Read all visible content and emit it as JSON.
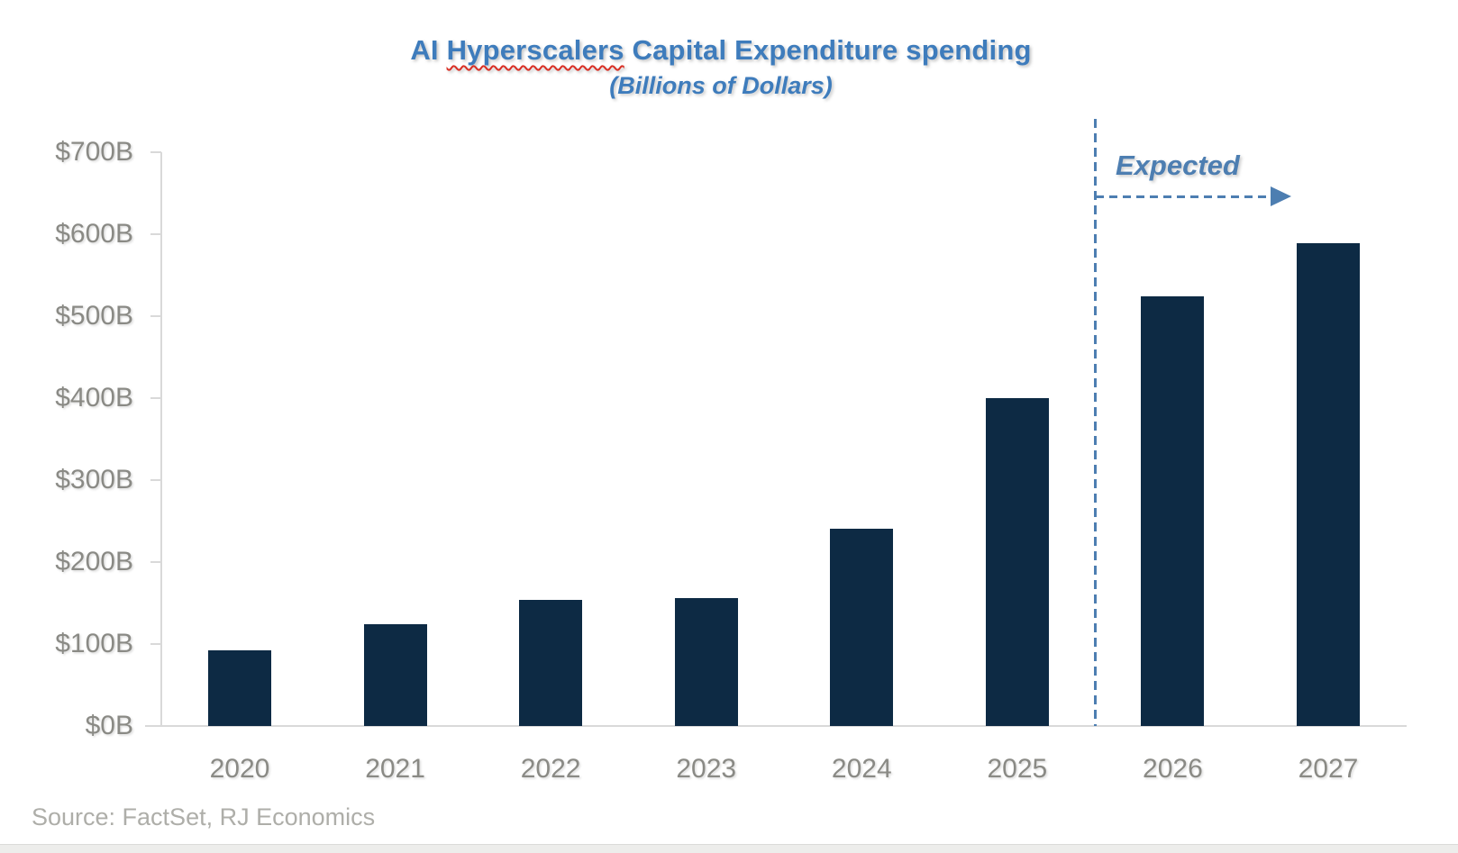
{
  "title": {
    "prefix": "AI ",
    "flagged_word": "Hyperscalers",
    "suffix": " Capital Expenditure spending",
    "subtitle": "(Billions of Dollars)"
  },
  "annotation": {
    "label": "Expected"
  },
  "source": "Source: FactSet, RJ Economics",
  "colors": {
    "title_blue": "#3E7CBC",
    "annotation_blue": "#4D7EB1",
    "bar_color": "#0D2A44",
    "axis_gray": "#D9D9D9",
    "label_gray": "#8A8A85",
    "source_gray": "#AEAEA9",
    "squiggle_red": "#D93025"
  },
  "chart_data": {
    "type": "bar",
    "title": "AI Hyperscalers Capital Expenditure spending",
    "subtitle": "(Billions of Dollars)",
    "categories": [
      "2020",
      "2021",
      "2022",
      "2023",
      "2024",
      "2025",
      "2026",
      "2027"
    ],
    "values": [
      92,
      124,
      154,
      156,
      241,
      400,
      525,
      590
    ],
    "unit": "Billions of Dollars",
    "ylim": [
      0,
      700
    ],
    "ytick_step": 100,
    "ytick_labels": [
      "$0B",
      "$100B",
      "$200B",
      "$300B",
      "$400B",
      "$500B",
      "$600B",
      "$700B"
    ],
    "gridlines": false,
    "legend": "none",
    "forecast_divider_after_category": "2025",
    "forecast_annotation": "Expected",
    "bar_color": "#0D2A44"
  }
}
